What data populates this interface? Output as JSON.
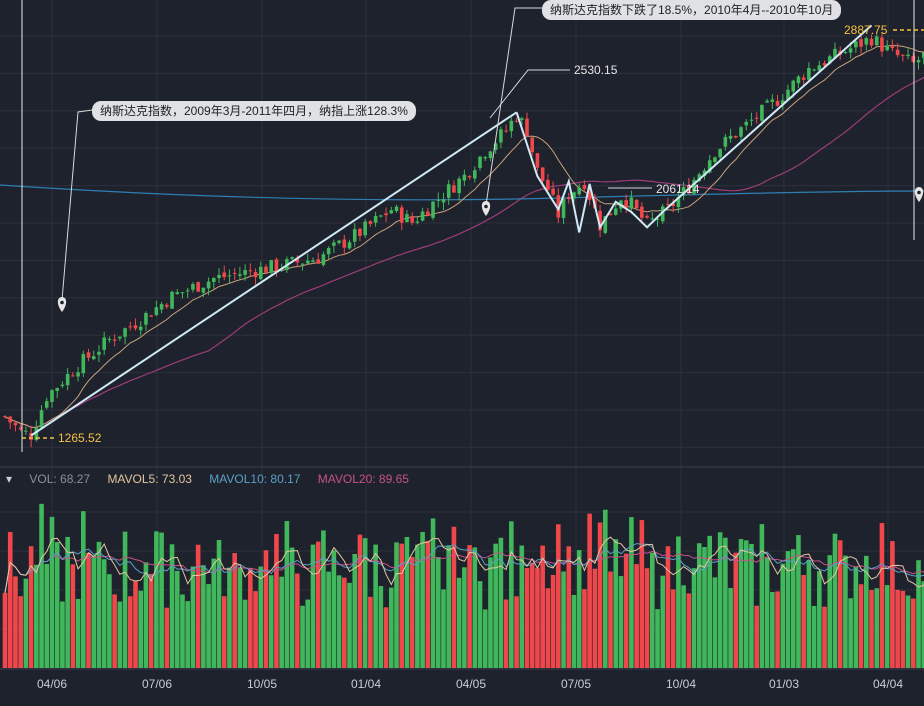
{
  "chart_data": {
    "type": "candlestick",
    "title": "",
    "price_axis": {
      "ylim": [
        1150,
        2950
      ]
    },
    "x_tick_labels": [
      "04/06",
      "07/06",
      "10/05",
      "01/04",
      "04/05",
      "07/05",
      "10/04",
      "01/03",
      "04/04"
    ],
    "annotations": {
      "rise": "纳斯达克指数，2009年3月-2011年四月，纳指上涨128.3%",
      "fall": "纳斯达克指数下跌了18.5%，2010年4月--2010年10月"
    },
    "price_labels": {
      "low": "1265.52",
      "peak": "2530.15",
      "mid": "2061.14",
      "high": "2887.75"
    },
    "volume_legend": {
      "vol": "VOL: 68.27",
      "mavol5": "MAVOL5: 73.03",
      "mavol10": "MAVOL10: 80.17",
      "mavol20": "MAVOL20: 89.65"
    },
    "colors": {
      "up": "#3fb75a",
      "down": "#f0474b",
      "ma_short": "#c9a27a",
      "ma_long": "#9c3d78",
      "ma_flat": "#2f7fb4",
      "trend": "#cfeaf6",
      "mavol5": "#e2c7a0",
      "mavol10": "#5aa0c8",
      "mavol20": "#c9508a"
    },
    "waypoints": [
      [
        0,
        1340
      ],
      [
        3,
        1280
      ],
      [
        5,
        1268
      ],
      [
        8,
        1420
      ],
      [
        14,
        1540
      ],
      [
        20,
        1640
      ],
      [
        26,
        1720
      ],
      [
        32,
        1810
      ],
      [
        40,
        1880
      ],
      [
        50,
        1920
      ],
      [
        60,
        1960
      ],
      [
        68,
        2060
      ],
      [
        74,
        2150
      ],
      [
        78,
        2100
      ],
      [
        84,
        2210
      ],
      [
        88,
        2280
      ],
      [
        92,
        2380
      ],
      [
        96,
        2460
      ],
      [
        98,
        2520
      ],
      [
        100,
        2460
      ],
      [
        102,
        2300
      ],
      [
        104,
        2230
      ],
      [
        106,
        2130
      ],
      [
        108,
        2210
      ],
      [
        111,
        2260
      ],
      [
        114,
        2090
      ],
      [
        116,
        2140
      ],
      [
        118,
        2200
      ],
      [
        120,
        2170
      ],
      [
        123,
        2090
      ],
      [
        127,
        2150
      ],
      [
        131,
        2240
      ],
      [
        136,
        2380
      ],
      [
        142,
        2480
      ],
      [
        148,
        2580
      ],
      [
        154,
        2700
      ],
      [
        160,
        2760
      ],
      [
        166,
        2820
      ],
      [
        170,
        2760
      ],
      [
        174,
        2720
      ],
      [
        178,
        2780
      ],
      [
        181,
        2840
      ],
      [
        184,
        2830
      ]
    ],
    "trend_lines": [
      [
        [
          5,
          1265.52
        ],
        [
          98,
          2530.15
        ]
      ],
      [
        [
          98,
          2530.15
        ],
        [
          102,
          2280
        ],
        [
          106,
          2150
        ],
        [
          108,
          2260
        ],
        [
          110,
          2060
        ],
        [
          112,
          2250
        ],
        [
          114,
          2080
        ],
        [
          117,
          2180
        ],
        [
          120,
          2140
        ],
        [
          123,
          2080
        ],
        [
          126,
          2140
        ],
        [
          166,
          2870
        ]
      ]
    ]
  }
}
